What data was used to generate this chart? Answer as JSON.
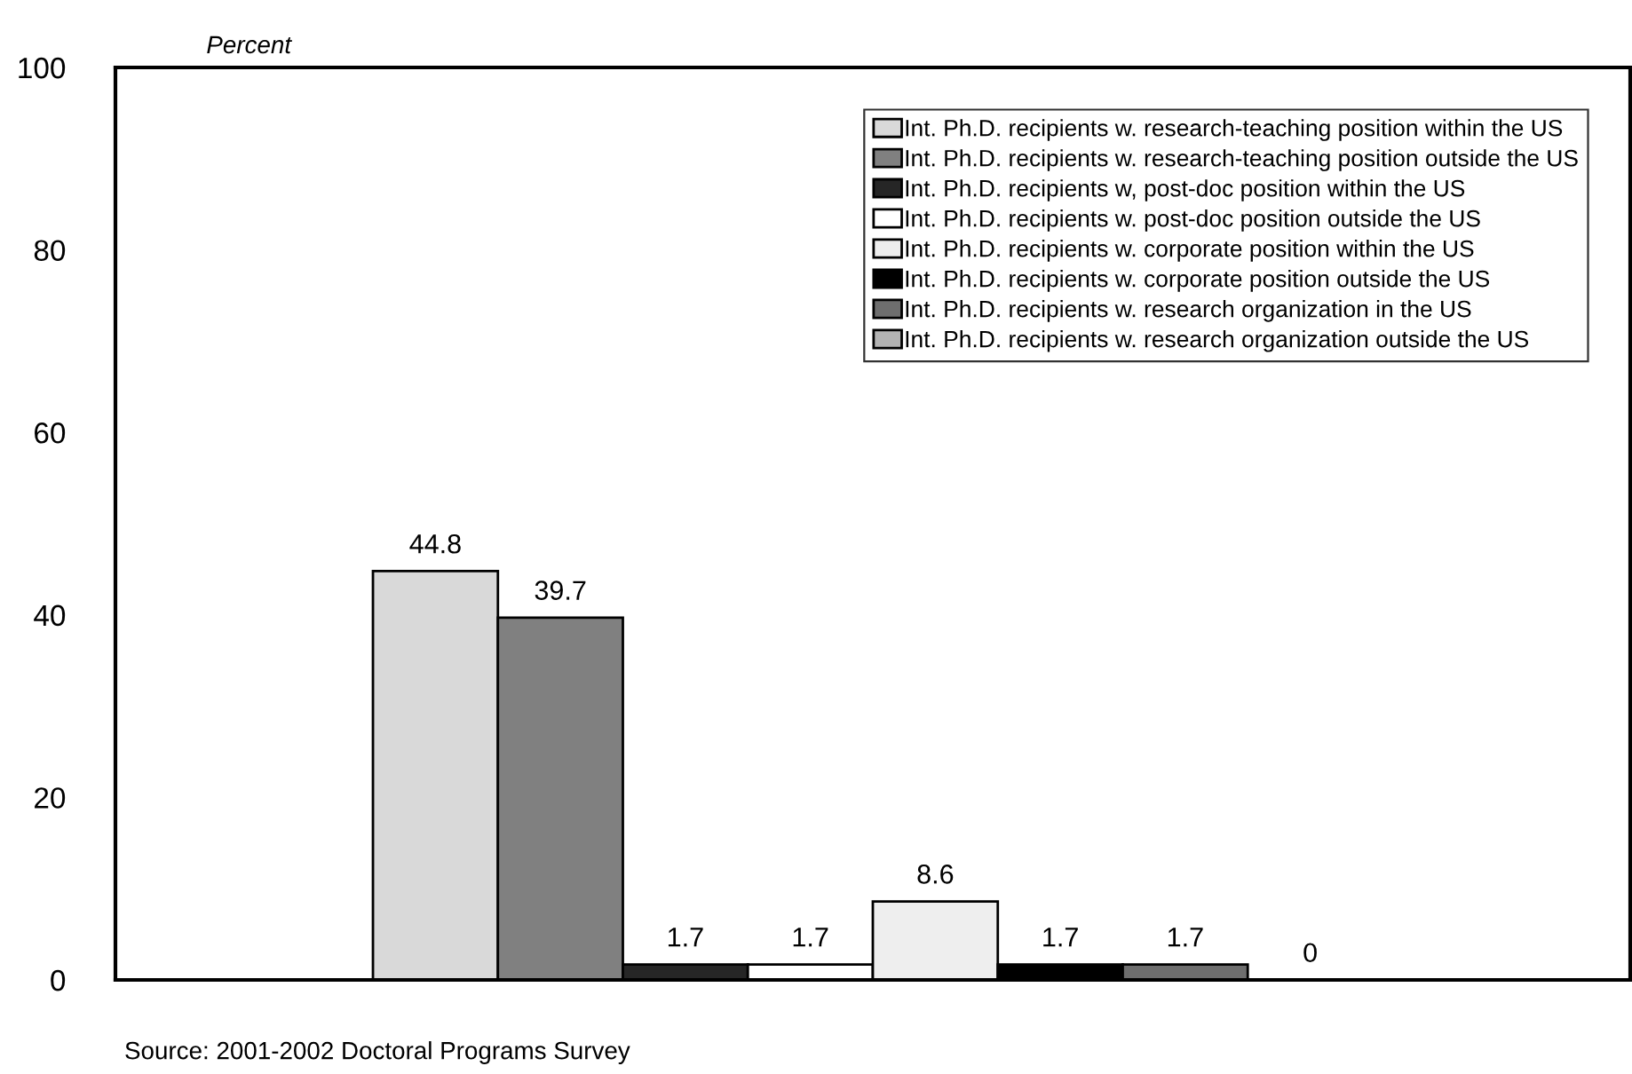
{
  "chart_data": {
    "type": "bar",
    "ylabel": "Percent",
    "categories": [
      null
    ],
    "series": [
      {
        "name": "Int. Ph.D. recipients w. research-teaching position within the US",
        "color": "#d9d9d9",
        "values": [
          44.8
        ]
      },
      {
        "name": "Int. Ph.D. recipients w. research-teaching position outside the US",
        "color": "#808080",
        "values": [
          39.7
        ]
      },
      {
        "name": "Int. Ph.D. recipients w, post-doc position within the US",
        "color": "#262626",
        "values": [
          1.7
        ]
      },
      {
        "name": "Int. Ph.D. recipients w. post-doc position outside the US",
        "color": "#ffffff",
        "values": [
          1.7
        ]
      },
      {
        "name": "Int. Ph.D. recipients w. corporate position within the US",
        "color": "#eeeeee",
        "values": [
          8.6
        ]
      },
      {
        "name": "Int. Ph.D. recipients w. corporate position outside the US",
        "color": "#000000",
        "values": [
          1.7
        ]
      },
      {
        "name": "Int. Ph.D. recipients w. research organization in the US",
        "color": "#6e6e6e",
        "values": [
          1.7
        ]
      },
      {
        "name": "Int. Ph.D. recipients w. research organization outside the US",
        "color": "#b3b3b3",
        "values": [
          0
        ]
      }
    ],
    "ylim": [
      0,
      100
    ],
    "yticks": [
      0,
      20,
      40,
      60,
      80,
      100
    ],
    "data_labels": true,
    "legend": "top right",
    "grid": false,
    "annotations": [
      "Source: 2001-2002 Doctoral Programs Survey"
    ]
  }
}
